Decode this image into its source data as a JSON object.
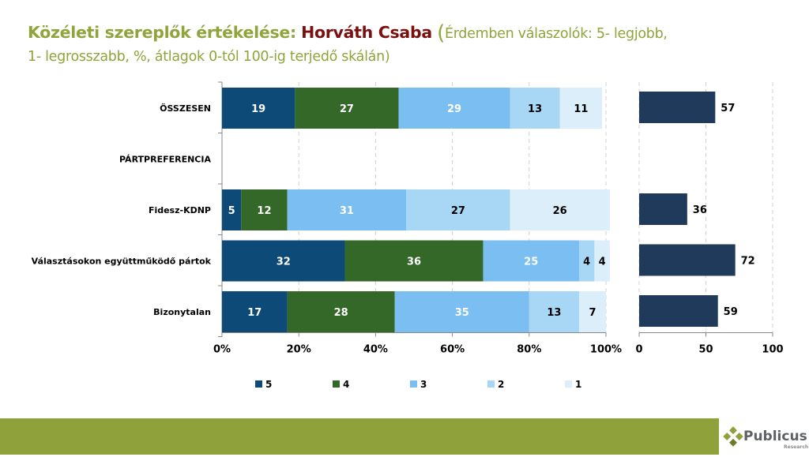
{
  "title": {
    "main": "Közéleti szereplők értékelése:",
    "name": "Horváth Csaba",
    "open_paren": "(",
    "subtitle_1": "Érdemben válaszolók: 5- legjobb,",
    "subtitle_2": "1- legrosszabb, %, átlagok 0-tól 100-ig terjedő skálán)"
  },
  "logo": {
    "name": "Publicus",
    "tagline": "Research"
  },
  "colors": {
    "title_green": "#8fa43a",
    "title_red": "#7b0f10",
    "s5": "#0d4a78",
    "s4": "#336828",
    "s3": "#7bbff2",
    "s2": "#a8d6f5",
    "s1": "#dbeef9",
    "avg_bar": "#1f3a5a",
    "footer": "#8fa13a"
  },
  "chart_data": [
    {
      "type": "bar",
      "orientation": "horizontal",
      "stacked": true,
      "categories": [
        "ÖSSZESEN",
        "PÁRTPREFERENCIA",
        "Fidesz-KDNP",
        "Választásokon együttműködő pártok",
        "Bizonytalan"
      ],
      "series": [
        {
          "name": "5",
          "values": [
            19,
            null,
            5,
            32,
            17
          ]
        },
        {
          "name": "4",
          "values": [
            27,
            null,
            12,
            36,
            28
          ]
        },
        {
          "name": "3",
          "values": [
            29,
            null,
            31,
            25,
            35
          ]
        },
        {
          "name": "2",
          "values": [
            13,
            null,
            27,
            4,
            13
          ]
        },
        {
          "name": "1",
          "values": [
            11,
            null,
            26,
            4,
            7
          ]
        }
      ],
      "xlim": [
        0,
        100
      ],
      "xticks": [
        "0%",
        "20%",
        "40%",
        "60%",
        "80%",
        "100%"
      ],
      "grid": true,
      "legend": "bottom"
    },
    {
      "type": "bar",
      "orientation": "horizontal",
      "categories": [
        "ÖSSZESEN",
        "PÁRTPREFERENCIA",
        "Fidesz-KDNP",
        "Választásokon együttműködő pártok",
        "Bizonytalan"
      ],
      "values": [
        57,
        null,
        36,
        72,
        59
      ],
      "xlim": [
        0,
        100
      ],
      "xticks": [
        "0",
        "50",
        "100"
      ],
      "grid": true
    }
  ]
}
